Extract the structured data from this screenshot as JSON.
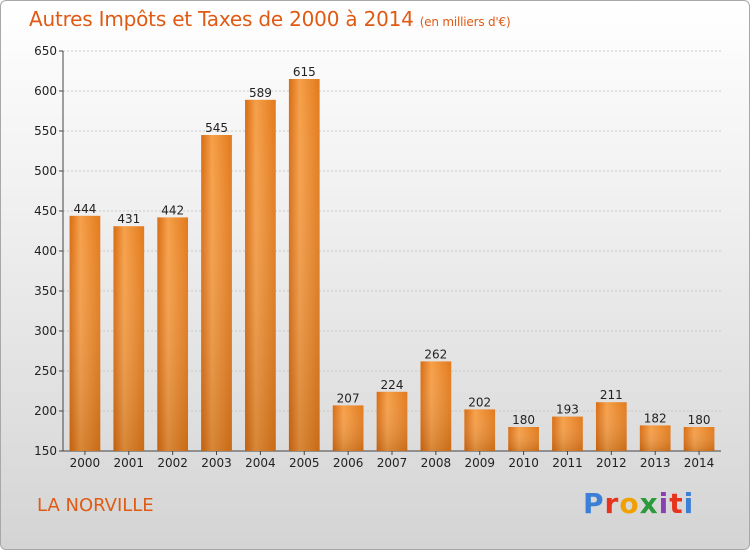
{
  "chart_data": {
    "type": "bar",
    "title": "Autres Impôts et Taxes de 2000 à 2014",
    "subtitle": "(en milliers d'€)",
    "categories": [
      "2000",
      "2001",
      "2002",
      "2003",
      "2004",
      "2005",
      "2006",
      "2007",
      "2008",
      "2009",
      "2010",
      "2011",
      "2012",
      "2013",
      "2014"
    ],
    "values": [
      444,
      431,
      442,
      545,
      589,
      615,
      207,
      224,
      262,
      202,
      180,
      193,
      211,
      182,
      180
    ],
    "ylim": [
      150,
      650
    ],
    "yticks": [
      150,
      200,
      250,
      300,
      350,
      400,
      450,
      500,
      550,
      600,
      650
    ],
    "grid": true,
    "bar_color": "#f0902e"
  },
  "commune": "LA NORVILLE",
  "logo": {
    "text": "Proxiti"
  }
}
